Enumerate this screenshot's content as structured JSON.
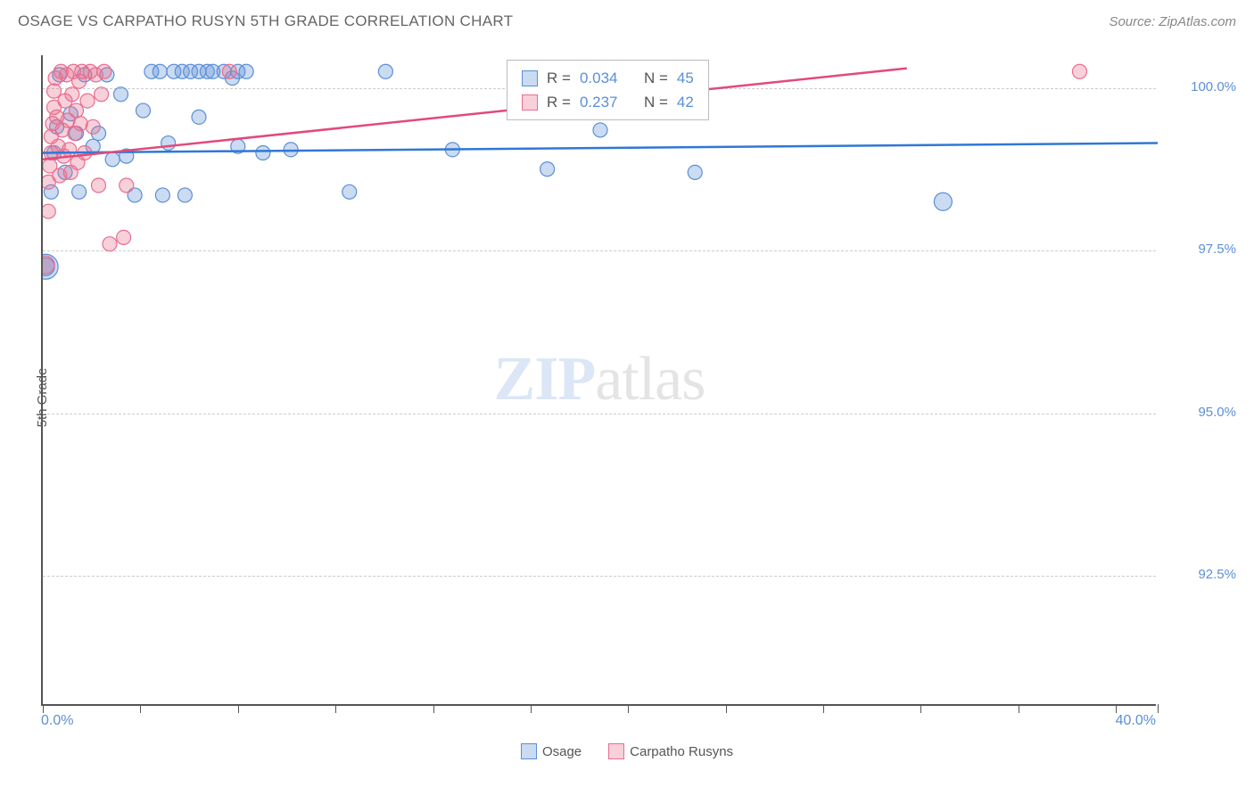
{
  "header": {
    "title": "OSAGE VS CARPATHO RUSYN 5TH GRADE CORRELATION CHART",
    "source": "Source: ZipAtlas.com"
  },
  "ylabel": "5th Grade",
  "chart": {
    "type": "scatter",
    "xlim": [
      0.0,
      40.0
    ],
    "ylim": [
      90.5,
      100.5
    ],
    "y_gridlines": [
      92.5,
      95.0,
      97.5,
      100.0
    ],
    "y_tick_labels": [
      "92.5%",
      "95.0%",
      "97.5%",
      "100.0%"
    ],
    "x_tick_positions": [
      0,
      3.5,
      7,
      10.5,
      14,
      17.5,
      21,
      24.5,
      28,
      31.5,
      35,
      38.5,
      40
    ],
    "x_axis_labels": [
      {
        "pos": 0.0,
        "text": "0.0%",
        "anchor": "start"
      },
      {
        "pos": 40.0,
        "text": "40.0%",
        "anchor": "end"
      }
    ],
    "grid_color": "#cccccc",
    "axis_color": "#555555",
    "tick_label_color": "#5b8fd6",
    "background_color": "#ffffff",
    "series": [
      {
        "name": "Osage",
        "marker_fill": "rgba(91,143,214,0.32)",
        "marker_stroke": "#5b8fd6",
        "line_color": "#2f78d6",
        "line_width": 2.5,
        "r": 0.034,
        "n": 45,
        "trend": {
          "x1": 0,
          "y1": 99.0,
          "x2": 40,
          "y2": 99.15
        },
        "points": [
          {
            "x": 0.1,
            "y": 97.25,
            "r": 14
          },
          {
            "x": 0.1,
            "y": 97.25,
            "r": 10
          },
          {
            "x": 0.3,
            "y": 98.4,
            "r": 8
          },
          {
            "x": 0.4,
            "y": 99.0,
            "r": 8
          },
          {
            "x": 0.5,
            "y": 99.4,
            "r": 8
          },
          {
            "x": 0.6,
            "y": 100.2,
            "r": 8
          },
          {
            "x": 0.8,
            "y": 98.7,
            "r": 8
          },
          {
            "x": 1.0,
            "y": 99.6,
            "r": 8
          },
          {
            "x": 1.2,
            "y": 99.3,
            "r": 8
          },
          {
            "x": 1.3,
            "y": 98.4,
            "r": 8
          },
          {
            "x": 1.5,
            "y": 100.2,
            "r": 8
          },
          {
            "x": 1.8,
            "y": 99.1,
            "r": 8
          },
          {
            "x": 2.0,
            "y": 99.3,
            "r": 8
          },
          {
            "x": 2.3,
            "y": 100.2,
            "r": 8
          },
          {
            "x": 2.5,
            "y": 98.9,
            "r": 8
          },
          {
            "x": 2.8,
            "y": 99.9,
            "r": 8
          },
          {
            "x": 3.0,
            "y": 98.95,
            "r": 8
          },
          {
            "x": 3.3,
            "y": 98.35,
            "r": 8
          },
          {
            "x": 3.6,
            "y": 99.65,
            "r": 8
          },
          {
            "x": 3.9,
            "y": 100.25,
            "r": 8
          },
          {
            "x": 4.2,
            "y": 100.25,
            "r": 8
          },
          {
            "x": 4.3,
            "y": 98.35,
            "r": 8
          },
          {
            "x": 4.5,
            "y": 99.15,
            "r": 8
          },
          {
            "x": 4.7,
            "y": 100.25,
            "r": 8
          },
          {
            "x": 5.0,
            "y": 100.25,
            "r": 8
          },
          {
            "x": 5.1,
            "y": 98.35,
            "r": 8
          },
          {
            "x": 5.3,
            "y": 100.25,
            "r": 8
          },
          {
            "x": 5.6,
            "y": 100.25,
            "r": 8
          },
          {
            "x": 5.6,
            "y": 99.55,
            "r": 8
          },
          {
            "x": 5.9,
            "y": 100.25,
            "r": 8
          },
          {
            "x": 6.1,
            "y": 100.25,
            "r": 8
          },
          {
            "x": 6.5,
            "y": 100.25,
            "r": 8
          },
          {
            "x": 6.8,
            "y": 100.15,
            "r": 8
          },
          {
            "x": 7.0,
            "y": 100.25,
            "r": 8
          },
          {
            "x": 7.0,
            "y": 99.1,
            "r": 8
          },
          {
            "x": 7.3,
            "y": 100.25,
            "r": 8
          },
          {
            "x": 7.9,
            "y": 99.0,
            "r": 8
          },
          {
            "x": 8.9,
            "y": 99.05,
            "r": 8
          },
          {
            "x": 11.0,
            "y": 98.4,
            "r": 8
          },
          {
            "x": 12.3,
            "y": 100.25,
            "r": 8
          },
          {
            "x": 14.7,
            "y": 99.05,
            "r": 8
          },
          {
            "x": 18.1,
            "y": 98.75,
            "r": 8
          },
          {
            "x": 20.0,
            "y": 99.35,
            "r": 8
          },
          {
            "x": 23.4,
            "y": 98.7,
            "r": 8
          },
          {
            "x": 32.3,
            "y": 98.25,
            "r": 10
          }
        ]
      },
      {
        "name": "Carpatho Rusyns",
        "marker_fill": "rgba(230,110,140,0.32)",
        "marker_stroke": "#e96d8e",
        "line_color": "#e24a79",
        "line_width": 2.5,
        "r": 0.237,
        "n": 42,
        "trend": {
          "x1": 0,
          "y1": 98.9,
          "x2": 31,
          "y2": 100.3
        },
        "points": [
          {
            "x": 0.1,
            "y": 97.28,
            "r": 10
          },
          {
            "x": 0.2,
            "y": 98.1,
            "r": 8
          },
          {
            "x": 0.2,
            "y": 98.55,
            "r": 8
          },
          {
            "x": 0.25,
            "y": 98.8,
            "r": 8
          },
          {
            "x": 0.3,
            "y": 99.0,
            "r": 8
          },
          {
            "x": 0.3,
            "y": 99.25,
            "r": 8
          },
          {
            "x": 0.35,
            "y": 99.45,
            "r": 8
          },
          {
            "x": 0.4,
            "y": 99.7,
            "r": 8
          },
          {
            "x": 0.4,
            "y": 99.95,
            "r": 8
          },
          {
            "x": 0.45,
            "y": 100.15,
            "r": 8
          },
          {
            "x": 0.5,
            "y": 99.55,
            "r": 8
          },
          {
            "x": 0.55,
            "y": 99.1,
            "r": 8
          },
          {
            "x": 0.6,
            "y": 98.65,
            "r": 8
          },
          {
            "x": 0.65,
            "y": 100.25,
            "r": 8
          },
          {
            "x": 0.7,
            "y": 99.35,
            "r": 8
          },
          {
            "x": 0.75,
            "y": 98.95,
            "r": 8
          },
          {
            "x": 0.8,
            "y": 99.8,
            "r": 8
          },
          {
            "x": 0.85,
            "y": 100.2,
            "r": 8
          },
          {
            "x": 0.9,
            "y": 99.5,
            "r": 8
          },
          {
            "x": 0.95,
            "y": 99.05,
            "r": 8
          },
          {
            "x": 1.0,
            "y": 98.7,
            "r": 8
          },
          {
            "x": 1.05,
            "y": 99.9,
            "r": 8
          },
          {
            "x": 1.1,
            "y": 100.25,
            "r": 8
          },
          {
            "x": 1.15,
            "y": 99.3,
            "r": 8
          },
          {
            "x": 1.2,
            "y": 99.65,
            "r": 8
          },
          {
            "x": 1.25,
            "y": 98.85,
            "r": 8
          },
          {
            "x": 1.3,
            "y": 100.1,
            "r": 8
          },
          {
            "x": 1.35,
            "y": 99.45,
            "r": 8
          },
          {
            "x": 1.4,
            "y": 100.25,
            "r": 8
          },
          {
            "x": 1.5,
            "y": 99.0,
            "r": 8
          },
          {
            "x": 1.6,
            "y": 99.8,
            "r": 8
          },
          {
            "x": 1.7,
            "y": 100.25,
            "r": 8
          },
          {
            "x": 1.8,
            "y": 99.4,
            "r": 8
          },
          {
            "x": 1.9,
            "y": 100.2,
            "r": 8
          },
          {
            "x": 2.0,
            "y": 98.5,
            "r": 8
          },
          {
            "x": 2.1,
            "y": 99.9,
            "r": 8
          },
          {
            "x": 2.2,
            "y": 100.25,
            "r": 8
          },
          {
            "x": 2.4,
            "y": 97.6,
            "r": 8
          },
          {
            "x": 2.9,
            "y": 97.7,
            "r": 8
          },
          {
            "x": 3.0,
            "y": 98.5,
            "r": 8
          },
          {
            "x": 6.7,
            "y": 100.25,
            "r": 8
          },
          {
            "x": 37.2,
            "y": 100.25,
            "r": 8
          }
        ]
      }
    ],
    "legend_position": "bottom"
  },
  "watermark": {
    "zip": "ZIP",
    "atlas": "atlas"
  },
  "stats_labels": {
    "r_label": "R =",
    "n_label": "N ="
  }
}
